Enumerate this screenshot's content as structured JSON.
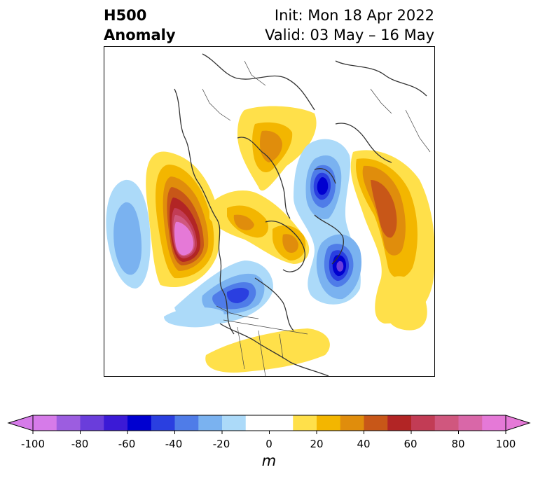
{
  "header": {
    "title_line1": "H500",
    "title_line2": "Anomaly",
    "init": "Init: Mon 18 Apr 2022",
    "valid": "Valid: 03 May – 16 May"
  },
  "colorbar": {
    "unit": "m",
    "ticks": [
      "-100",
      "-80",
      "-60",
      "-40",
      "-20",
      "0",
      "20",
      "40",
      "60",
      "80",
      "100"
    ],
    "tick_values": [
      -100,
      -80,
      -60,
      -40,
      -20,
      0,
      20,
      40,
      60,
      80,
      100
    ],
    "range": [
      -100,
      100
    ],
    "extend": "both",
    "colors": [
      "#d67be9",
      "#9c5de0",
      "#6a3ddb",
      "#3b1ad6",
      "#0000d0",
      "#2a3fe0",
      "#4f7ce8",
      "#7ab2f0",
      "#acdaf9",
      "#ffffff",
      "#ffffff",
      "#ffe04a",
      "#f3b600",
      "#e08d0c",
      "#c85718",
      "#b22525",
      "#c23c55",
      "#d0577e",
      "#d967a8",
      "#e579d7"
    ]
  },
  "map": {
    "projection": "north-polar",
    "field": "500 hPa geopotential height anomaly",
    "colors": {
      "coast": "#333333",
      "border": "#444444"
    }
  }
}
